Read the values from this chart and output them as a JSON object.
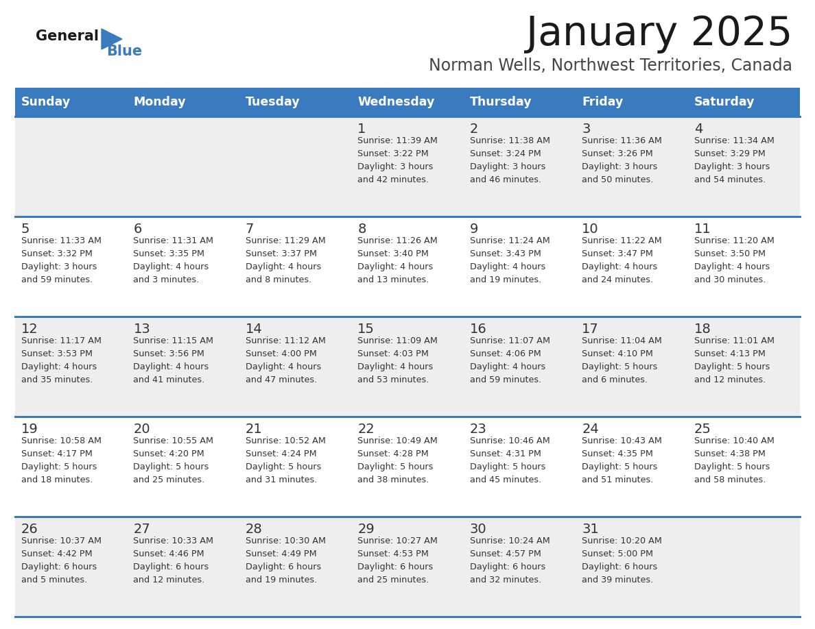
{
  "title": "January 2025",
  "subtitle": "Norman Wells, Northwest Territories, Canada",
  "days_of_week": [
    "Sunday",
    "Monday",
    "Tuesday",
    "Wednesday",
    "Thursday",
    "Friday",
    "Saturday"
  ],
  "header_bg": "#3a7abf",
  "header_text": "#ffffff",
  "cell_bg_light": "#eeeeee",
  "cell_bg_white": "#ffffff",
  "separator_color": "#3a7abf",
  "text_color": "#333333",
  "title_color": "#1a1a1a",
  "subtitle_color": "#444444",
  "logo_general_color": "#1a1a1a",
  "logo_blue_color": "#3a7abf",
  "calendar": [
    [
      null,
      null,
      null,
      {
        "day": 1,
        "sunrise": "11:39 AM",
        "sunset": "3:22 PM",
        "daylight": "3 hours\nand 42 minutes."
      },
      {
        "day": 2,
        "sunrise": "11:38 AM",
        "sunset": "3:24 PM",
        "daylight": "3 hours\nand 46 minutes."
      },
      {
        "day": 3,
        "sunrise": "11:36 AM",
        "sunset": "3:26 PM",
        "daylight": "3 hours\nand 50 minutes."
      },
      {
        "day": 4,
        "sunrise": "11:34 AM",
        "sunset": "3:29 PM",
        "daylight": "3 hours\nand 54 minutes."
      }
    ],
    [
      {
        "day": 5,
        "sunrise": "11:33 AM",
        "sunset": "3:32 PM",
        "daylight": "3 hours\nand 59 minutes."
      },
      {
        "day": 6,
        "sunrise": "11:31 AM",
        "sunset": "3:35 PM",
        "daylight": "4 hours\nand 3 minutes."
      },
      {
        "day": 7,
        "sunrise": "11:29 AM",
        "sunset": "3:37 PM",
        "daylight": "4 hours\nand 8 minutes."
      },
      {
        "day": 8,
        "sunrise": "11:26 AM",
        "sunset": "3:40 PM",
        "daylight": "4 hours\nand 13 minutes."
      },
      {
        "day": 9,
        "sunrise": "11:24 AM",
        "sunset": "3:43 PM",
        "daylight": "4 hours\nand 19 minutes."
      },
      {
        "day": 10,
        "sunrise": "11:22 AM",
        "sunset": "3:47 PM",
        "daylight": "4 hours\nand 24 minutes."
      },
      {
        "day": 11,
        "sunrise": "11:20 AM",
        "sunset": "3:50 PM",
        "daylight": "4 hours\nand 30 minutes."
      }
    ],
    [
      {
        "day": 12,
        "sunrise": "11:17 AM",
        "sunset": "3:53 PM",
        "daylight": "4 hours\nand 35 minutes."
      },
      {
        "day": 13,
        "sunrise": "11:15 AM",
        "sunset": "3:56 PM",
        "daylight": "4 hours\nand 41 minutes."
      },
      {
        "day": 14,
        "sunrise": "11:12 AM",
        "sunset": "4:00 PM",
        "daylight": "4 hours\nand 47 minutes."
      },
      {
        "day": 15,
        "sunrise": "11:09 AM",
        "sunset": "4:03 PM",
        "daylight": "4 hours\nand 53 minutes."
      },
      {
        "day": 16,
        "sunrise": "11:07 AM",
        "sunset": "4:06 PM",
        "daylight": "4 hours\nand 59 minutes."
      },
      {
        "day": 17,
        "sunrise": "11:04 AM",
        "sunset": "4:10 PM",
        "daylight": "5 hours\nand 6 minutes."
      },
      {
        "day": 18,
        "sunrise": "11:01 AM",
        "sunset": "4:13 PM",
        "daylight": "5 hours\nand 12 minutes."
      }
    ],
    [
      {
        "day": 19,
        "sunrise": "10:58 AM",
        "sunset": "4:17 PM",
        "daylight": "5 hours\nand 18 minutes."
      },
      {
        "day": 20,
        "sunrise": "10:55 AM",
        "sunset": "4:20 PM",
        "daylight": "5 hours\nand 25 minutes."
      },
      {
        "day": 21,
        "sunrise": "10:52 AM",
        "sunset": "4:24 PM",
        "daylight": "5 hours\nand 31 minutes."
      },
      {
        "day": 22,
        "sunrise": "10:49 AM",
        "sunset": "4:28 PM",
        "daylight": "5 hours\nand 38 minutes."
      },
      {
        "day": 23,
        "sunrise": "10:46 AM",
        "sunset": "4:31 PM",
        "daylight": "5 hours\nand 45 minutes."
      },
      {
        "day": 24,
        "sunrise": "10:43 AM",
        "sunset": "4:35 PM",
        "daylight": "5 hours\nand 51 minutes."
      },
      {
        "day": 25,
        "sunrise": "10:40 AM",
        "sunset": "4:38 PM",
        "daylight": "5 hours\nand 58 minutes."
      }
    ],
    [
      {
        "day": 26,
        "sunrise": "10:37 AM",
        "sunset": "4:42 PM",
        "daylight": "6 hours\nand 5 minutes."
      },
      {
        "day": 27,
        "sunrise": "10:33 AM",
        "sunset": "4:46 PM",
        "daylight": "6 hours\nand 12 minutes."
      },
      {
        "day": 28,
        "sunrise": "10:30 AM",
        "sunset": "4:49 PM",
        "daylight": "6 hours\nand 19 minutes."
      },
      {
        "day": 29,
        "sunrise": "10:27 AM",
        "sunset": "4:53 PM",
        "daylight": "6 hours\nand 25 minutes."
      },
      {
        "day": 30,
        "sunrise": "10:24 AM",
        "sunset": "4:57 PM",
        "daylight": "6 hours\nand 32 minutes."
      },
      {
        "day": 31,
        "sunrise": "10:20 AM",
        "sunset": "5:00 PM",
        "daylight": "6 hours\nand 39 minutes."
      },
      null
    ]
  ]
}
